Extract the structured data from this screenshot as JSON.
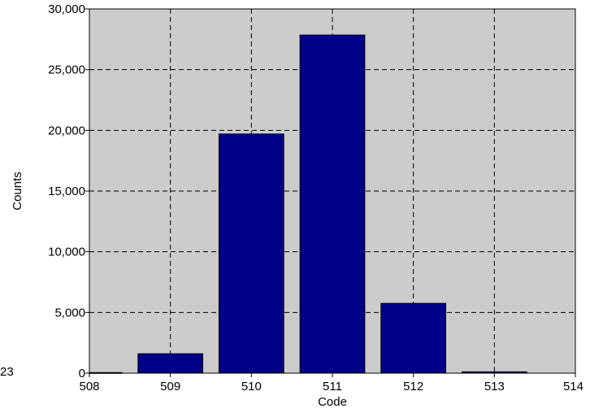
{
  "chart_data": {
    "type": "bar",
    "title": "",
    "xlabel": "Code",
    "ylabel": "Counts",
    "categories": [
      "508",
      "509",
      "510",
      "511",
      "512",
      "513"
    ],
    "values": [
      50,
      1600,
      19700,
      27850,
      5750,
      110
    ],
    "xlim": [
      508,
      514
    ],
    "ylim": [
      0,
      30000
    ],
    "x_ticks": [
      "508",
      "509",
      "510",
      "511",
      "512",
      "513",
      "514"
    ],
    "y_ticks": [
      "0",
      "5,000",
      "10,000",
      "15,000",
      "20,000",
      "25,000",
      "30,000"
    ],
    "grid": true,
    "legend": "none",
    "colors": {
      "bar": "#000088",
      "bar_edge": "#000000",
      "plot_background": "#cccccc",
      "grid": "#000000"
    }
  },
  "left_cut_label": "23"
}
